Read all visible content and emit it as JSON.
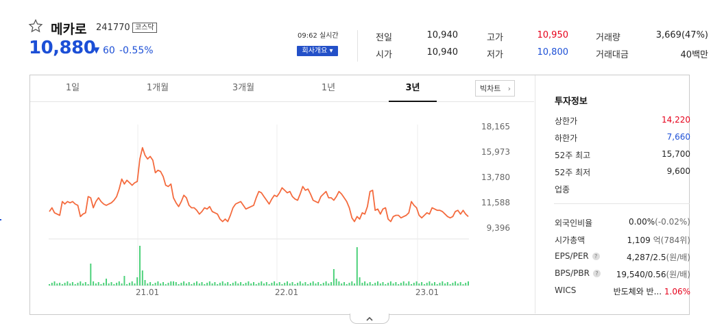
{
  "stock": {
    "name": "메카로",
    "code": "241770",
    "market": "코스닥",
    "price": "10,880",
    "change_arrow": "▼",
    "change": "60",
    "change_pct": "-0.55%",
    "realtime": "09:62 실시간",
    "corp_button": "회사개요 ▾"
  },
  "quote": {
    "prev_label": "전일",
    "prev": "10,940",
    "open_label": "시가",
    "open": "10,940",
    "high_label": "고가",
    "high": "10,950",
    "low_label": "저가",
    "low": "10,800",
    "volume_label": "거래량",
    "volume": "3,669(47%)",
    "amount_label": "거래대금",
    "amount": "40백만"
  },
  "tabs": [
    "1일",
    "1개월",
    "3개월",
    "1년",
    "3년"
  ],
  "active_tab": "3년",
  "big_chart": "빅차트",
  "info": {
    "title": "투자정보",
    "upper_label": "상한가",
    "upper": "14,220",
    "lower_label": "하한가",
    "lower": "7,660",
    "high52_label": "52주 최고",
    "high52": "15,700",
    "low52_label": "52주 최저",
    "low52": "9,600",
    "industry_label": "업종",
    "foreign_label": "외국인비율",
    "foreign": "0.00%",
    "foreign_chg": "(-0.02%)",
    "mcap_label": "시가총액",
    "mcap": "1,109",
    "mcap_unit": "억(784위)",
    "eps_label": "EPS/PER",
    "eps": "4,287/2.5",
    "eps_unit": "(원/배)",
    "bps_label": "BPS/PBR",
    "bps": "19,540/0.56",
    "bps_unit": "(원/배)",
    "wics_label": "WICS",
    "wics": "반도체와 반...",
    "wics_pct": "1.06%"
  },
  "chart_data": {
    "type": "line",
    "y_ticks": [
      "18,165",
      "15,973",
      "13,780",
      "11,588",
      "9,396"
    ],
    "x_ticks": [
      "21.01",
      "22.01",
      "23.01"
    ],
    "ylim": [
      9396,
      18165
    ],
    "line_color": "#f46a3d",
    "volume_color": "#4cd17a",
    "price": [
      11200,
      11500,
      11100,
      11000,
      10900,
      12000,
      11800,
      12000,
      11900,
      12000,
      11800,
      11700,
      10800,
      11000,
      11100,
      12400,
      12300,
      11500,
      12000,
      12300,
      12000,
      11800,
      11700,
      11800,
      11900,
      12100,
      12400,
      13000,
      13800,
      13400,
      13700,
      13500,
      13300,
      13500,
      13600,
      15400,
      16300,
      15700,
      15400,
      15600,
      15300,
      14300,
      14500,
      14400,
      14000,
      13300,
      13200,
      13400,
      12300,
      11900,
      11600,
      12000,
      12500,
      12300,
      11700,
      11500,
      11500,
      11300,
      11000,
      11200,
      11500,
      11400,
      11600,
      11200,
      11100,
      11000,
      10600,
      10400,
      10600,
      10400,
      10900,
      11500,
      11800,
      11900,
      12000,
      11700,
      11400,
      11500,
      11600,
      11700,
      12300,
      12800,
      12700,
      12400,
      12100,
      11800,
      12200,
      12500,
      12400,
      12700,
      13100,
      12900,
      12700,
      12800,
      12400,
      12200,
      12100,
      12600,
      13200,
      12900,
      13000,
      12600,
      12100,
      12000,
      11900,
      12400,
      12600,
      12800,
      12300,
      12300,
      12100,
      12400,
      12800,
      12600,
      12300,
      12000,
      11500,
      10700,
      10400,
      10800,
      10600,
      11100,
      11000,
      11600,
      12800,
      12900,
      11300,
      11400,
      11000,
      11400,
      11500,
      10600,
      10400,
      10800,
      10900,
      10900,
      10700,
      10800,
      10900,
      11100,
      12000,
      11700,
      11500,
      10900,
      10700,
      10900,
      11100,
      11000,
      11500,
      11400,
      11300,
      11300,
      11200,
      11000,
      10800,
      10700,
      10800,
      11200,
      11300,
      11000,
      11300,
      11000,
      10800
    ]
  }
}
